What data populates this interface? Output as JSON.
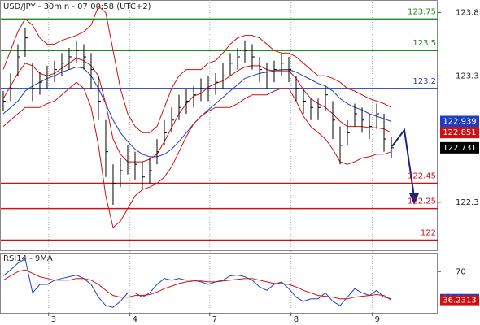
{
  "chart_data": [
    {
      "type": "ohlc",
      "title": "USD/JPY - 30min - 07:00:58 (UTC+2)",
      "color": "#000000",
      "x": [
        0,
        1,
        2,
        3,
        4,
        5,
        6,
        7,
        8,
        9,
        10,
        11,
        12,
        13,
        14,
        15,
        16,
        17,
        18,
        19,
        20,
        21,
        22,
        23,
        24,
        25,
        26,
        27,
        28,
        29,
        30,
        31,
        32,
        33,
        34,
        35,
        36,
        37,
        38,
        39,
        40,
        41,
        42,
        43,
        44,
        45,
        46,
        47,
        48,
        49,
        50,
        51,
        52,
        53
      ],
      "xlim": [
        -0.44,
        59.33
      ],
      "xticks": [
        {
          "value": 6.2,
          "label": "3"
        },
        {
          "value": 17.3,
          "label": "4"
        },
        {
          "value": 28.2,
          "label": "7"
        },
        {
          "value": 39.3,
          "label": "8"
        },
        {
          "value": 50.4,
          "label": "9"
        }
      ],
      "ylim": [
        121.92,
        123.9
      ],
      "yticks": [
        123.8,
        123.3,
        122.3
      ],
      "high": [
        123.18,
        123.32,
        123.55,
        123.68,
        123.4,
        123.33,
        123.38,
        123.42,
        123.48,
        123.52,
        123.58,
        123.55,
        123.48,
        123.3,
        122.95,
        122.6,
        122.65,
        122.75,
        122.7,
        122.62,
        122.65,
        122.8,
        122.95,
        123.05,
        123.15,
        123.2,
        123.22,
        123.28,
        123.3,
        123.32,
        123.4,
        123.48,
        123.52,
        123.58,
        123.55,
        123.45,
        123.4,
        123.42,
        123.48,
        123.45,
        123.3,
        123.2,
        123.12,
        123.12,
        123.22,
        123.1,
        122.9,
        122.95,
        123.08,
        123.05,
        123.0,
        123.08,
        123.0,
        122.82
      ],
      "low": [
        123.02,
        123.1,
        123.3,
        123.45,
        123.1,
        123.15,
        123.2,
        123.25,
        123.3,
        123.35,
        123.4,
        123.35,
        123.2,
        122.95,
        122.5,
        122.28,
        122.42,
        122.52,
        122.48,
        122.4,
        122.45,
        122.6,
        122.75,
        122.85,
        122.95,
        123.0,
        123.05,
        123.1,
        123.1,
        123.15,
        123.2,
        123.3,
        123.35,
        123.4,
        123.35,
        123.25,
        123.2,
        123.25,
        123.3,
        123.25,
        123.1,
        123.0,
        122.95,
        122.95,
        123.02,
        122.8,
        122.6,
        122.75,
        122.9,
        122.85,
        122.8,
        122.88,
        122.7,
        122.65
      ],
      "close": [
        123.1,
        123.2,
        123.45,
        123.6,
        123.2,
        123.25,
        123.3,
        123.35,
        123.4,
        123.45,
        123.5,
        123.45,
        123.35,
        123.1,
        122.7,
        122.45,
        122.55,
        122.65,
        122.6,
        122.5,
        122.55,
        122.7,
        122.85,
        122.95,
        123.05,
        123.1,
        123.15,
        123.2,
        123.2,
        123.25,
        123.3,
        123.4,
        123.45,
        123.5,
        123.45,
        123.35,
        123.3,
        123.35,
        123.4,
        123.35,
        123.2,
        123.1,
        123.05,
        123.05,
        123.15,
        122.95,
        122.75,
        122.85,
        123.0,
        122.95,
        122.9,
        123.0,
        122.8,
        122.731
      ],
      "close_tag_color": "#000000",
      "lines": [
        {
          "color": "#1f3fbf",
          "values": [
            123.0,
            123.05,
            123.1,
            123.18,
            123.22,
            123.25,
            123.28,
            123.3,
            123.33,
            123.35,
            123.37,
            123.36,
            123.3,
            123.2,
            123.08,
            122.95,
            122.85,
            122.78,
            122.72,
            122.68,
            122.66,
            122.66,
            122.68,
            122.72,
            122.78,
            122.85,
            122.92,
            122.98,
            123.03,
            123.08,
            123.13,
            123.18,
            123.23,
            123.28,
            123.3,
            123.32,
            123.33,
            123.34,
            123.35,
            123.35,
            123.33,
            123.3,
            123.27,
            123.24,
            123.22,
            123.18,
            123.12,
            123.08,
            123.05,
            123.03,
            123.0,
            122.98,
            122.96,
            122.939
          ],
          "tag": true
        },
        {
          "color": "#d01010",
          "values": [
            123.12,
            123.22,
            123.32,
            123.4,
            123.38,
            123.32,
            123.3,
            123.32,
            123.36,
            123.4,
            123.44,
            123.42,
            123.38,
            123.3,
            123.08,
            122.8,
            122.68,
            122.62,
            122.62,
            122.62,
            122.64,
            122.68,
            122.78,
            122.89,
            123.0,
            123.08,
            123.14,
            123.16,
            123.21,
            123.24,
            123.26,
            123.3,
            123.34,
            123.37,
            123.38,
            123.38,
            123.35,
            123.34,
            123.34,
            123.34,
            123.28,
            123.19,
            123.12,
            123.08,
            123.05,
            123.0,
            122.94,
            122.9,
            122.9,
            122.9,
            122.89,
            122.89,
            122.88,
            122.851
          ],
          "tag": true
        },
        {
          "color": "#d01010",
          "values": [
            123.35,
            123.5,
            123.65,
            123.75,
            123.7,
            123.6,
            123.55,
            123.55,
            123.58,
            123.6,
            123.62,
            123.65,
            123.7,
            123.85,
            123.8,
            123.5,
            123.2,
            123.0,
            122.9,
            122.85,
            122.85,
            122.9,
            123.05,
            123.2,
            123.3,
            123.35,
            123.35,
            123.35,
            123.4,
            123.42,
            123.48,
            123.55,
            123.6,
            123.62,
            123.62,
            123.6,
            123.55,
            123.5,
            123.48,
            123.48,
            123.45,
            123.4,
            123.35,
            123.3,
            123.3,
            123.28,
            123.25,
            123.2,
            123.18,
            123.15,
            123.12,
            123.1,
            123.08,
            123.05
          ],
          "tag": false
        },
        {
          "color": "#d01010",
          "values": [
            122.9,
            122.95,
            123.0,
            123.05,
            123.05,
            123.05,
            123.08,
            123.1,
            123.15,
            123.2,
            123.25,
            123.2,
            123.05,
            122.75,
            122.35,
            122.1,
            122.15,
            122.25,
            122.35,
            122.4,
            122.42,
            122.45,
            122.5,
            122.58,
            122.7,
            122.82,
            122.92,
            122.98,
            123.02,
            123.05,
            123.05,
            123.05,
            123.08,
            123.12,
            123.15,
            123.15,
            123.15,
            123.18,
            123.2,
            123.2,
            123.1,
            122.98,
            122.9,
            122.85,
            122.8,
            122.72,
            122.62,
            122.6,
            122.62,
            122.65,
            122.66,
            122.68,
            122.68,
            122.7
          ],
          "tag": false
        }
      ],
      "levels": [
        {
          "value": 123.75,
          "color": "#1e8c1e"
        },
        {
          "value": 123.5,
          "color": "#1e8c1e"
        },
        {
          "value": 123.2,
          "color": "#1f3fbf"
        },
        {
          "value": 122.45,
          "color": "#d01010"
        },
        {
          "value": 122.25,
          "color": "#d01010"
        },
        {
          "value": 122,
          "color": "#d01010"
        }
      ]
    },
    {
      "type": "line",
      "title": "RSI14 - 9MA",
      "ylim": [
        21.5,
        92.3
      ],
      "yticks": [
        70
      ],
      "series": [
        {
          "color": "#1f3fbf",
          "values": [
            65,
            72,
            80,
            85,
            45,
            55,
            55,
            60,
            62,
            64,
            66,
            62,
            55,
            40,
            30,
            28,
            35,
            45,
            45,
            40,
            45,
            55,
            62,
            60,
            62,
            60,
            60,
            58,
            55,
            58,
            60,
            65,
            66,
            64,
            60,
            52,
            48,
            55,
            58,
            50,
            40,
            35,
            38,
            38,
            45,
            35,
            30,
            40,
            50,
            45,
            42,
            48,
            40,
            38.0196
          ]
        },
        {
          "color": "#d01010",
          "values": [
            60,
            65,
            70,
            72,
            68,
            64,
            62,
            60,
            60,
            60,
            62,
            62,
            60,
            55,
            48,
            42,
            40,
            40,
            42,
            42,
            43,
            46,
            50,
            53,
            56,
            58,
            59,
            59,
            58,
            58,
            59,
            60,
            61,
            62,
            62,
            60,
            58,
            56,
            56,
            55,
            52,
            48,
            45,
            42,
            41,
            40,
            38,
            38,
            40,
            41,
            42,
            43,
            42,
            36.2313
          ]
        }
      ]
    }
  ]
}
